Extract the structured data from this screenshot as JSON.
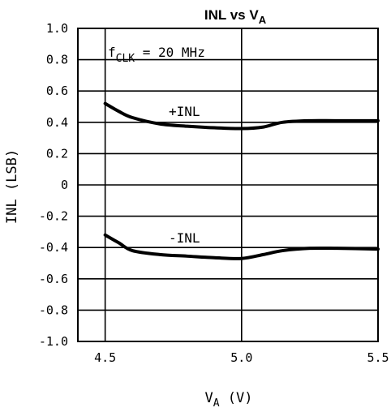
{
  "chart_data": {
    "type": "line",
    "title": "INL vs V",
    "title_subscript": "A",
    "xlabel": "V",
    "xlabel_subscript": "A",
    "xlabel_unit": "(V)",
    "ylabel": "INL (LSB)",
    "xlim": [
      4.4,
      5.5
    ],
    "ylim": [
      -1.0,
      1.0
    ],
    "x_ticks": [
      "4.5",
      "5.0",
      "5.5"
    ],
    "y_ticks": [
      "-1.0",
      "-0.8",
      "-0.6",
      "-0.4",
      "-0.2",
      "0",
      "0.2",
      "0.4",
      "0.6",
      "0.8",
      "1.0"
    ],
    "grid": "on",
    "annotations": {
      "condition_main": "f",
      "condition_sub": "CLK",
      "condition_value": " = 20 MHz",
      "plus_label": "+INL",
      "minus_label": "-INL"
    },
    "series": [
      {
        "id": "plus_inl",
        "x": [
          4.5,
          4.55,
          4.6,
          4.7,
          4.8,
          4.9,
          5.0,
          5.08,
          5.15,
          5.25,
          5.35,
          5.5
        ],
        "y": [
          0.52,
          0.47,
          0.43,
          0.39,
          0.375,
          0.365,
          0.36,
          0.37,
          0.4,
          0.41,
          0.41,
          0.41
        ]
      },
      {
        "id": "minus_inl",
        "x": [
          4.5,
          4.55,
          4.6,
          4.7,
          4.8,
          4.9,
          5.0,
          5.08,
          5.15,
          5.25,
          5.35,
          5.5
        ],
        "y": [
          -0.32,
          -0.37,
          -0.42,
          -0.445,
          -0.455,
          -0.465,
          -0.47,
          -0.445,
          -0.42,
          -0.405,
          -0.405,
          -0.41
        ]
      }
    ]
  }
}
